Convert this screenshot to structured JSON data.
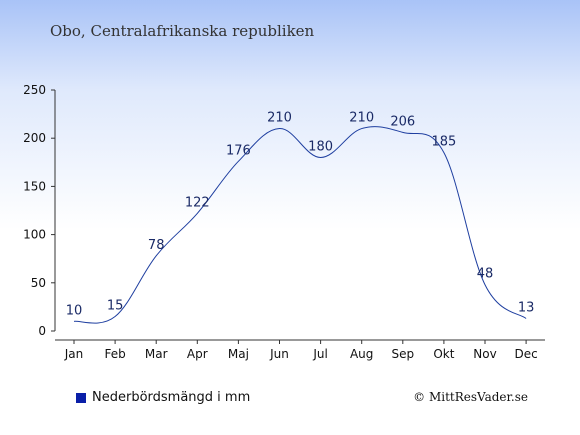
{
  "page": {
    "title": "Obo, Centralafrikanska republiken",
    "credit": "© MittResVader.se"
  },
  "chart_data": {
    "type": "line",
    "title": "Obo, Centralafrikanska republiken",
    "xlabel": "",
    "ylabel": "",
    "categories": [
      "Jan",
      "Feb",
      "Mar",
      "Apr",
      "Maj",
      "Jun",
      "Jul",
      "Aug",
      "Sep",
      "Okt",
      "Nov",
      "Dec"
    ],
    "series": [
      {
        "name": "Nederbördsmängd i mm",
        "values": [
          10,
          15,
          78,
          122,
          176,
          210,
          180,
          210,
          206,
          185,
          48,
          13
        ]
      }
    ],
    "ylim": [
      0,
      250
    ],
    "yticks": [
      0,
      50,
      100,
      150,
      200,
      250
    ],
    "grid": false,
    "legend_position": "bottom-left",
    "colors": {
      "line": "#1f3fa0",
      "legend_swatch": "#0a1fa8"
    }
  }
}
